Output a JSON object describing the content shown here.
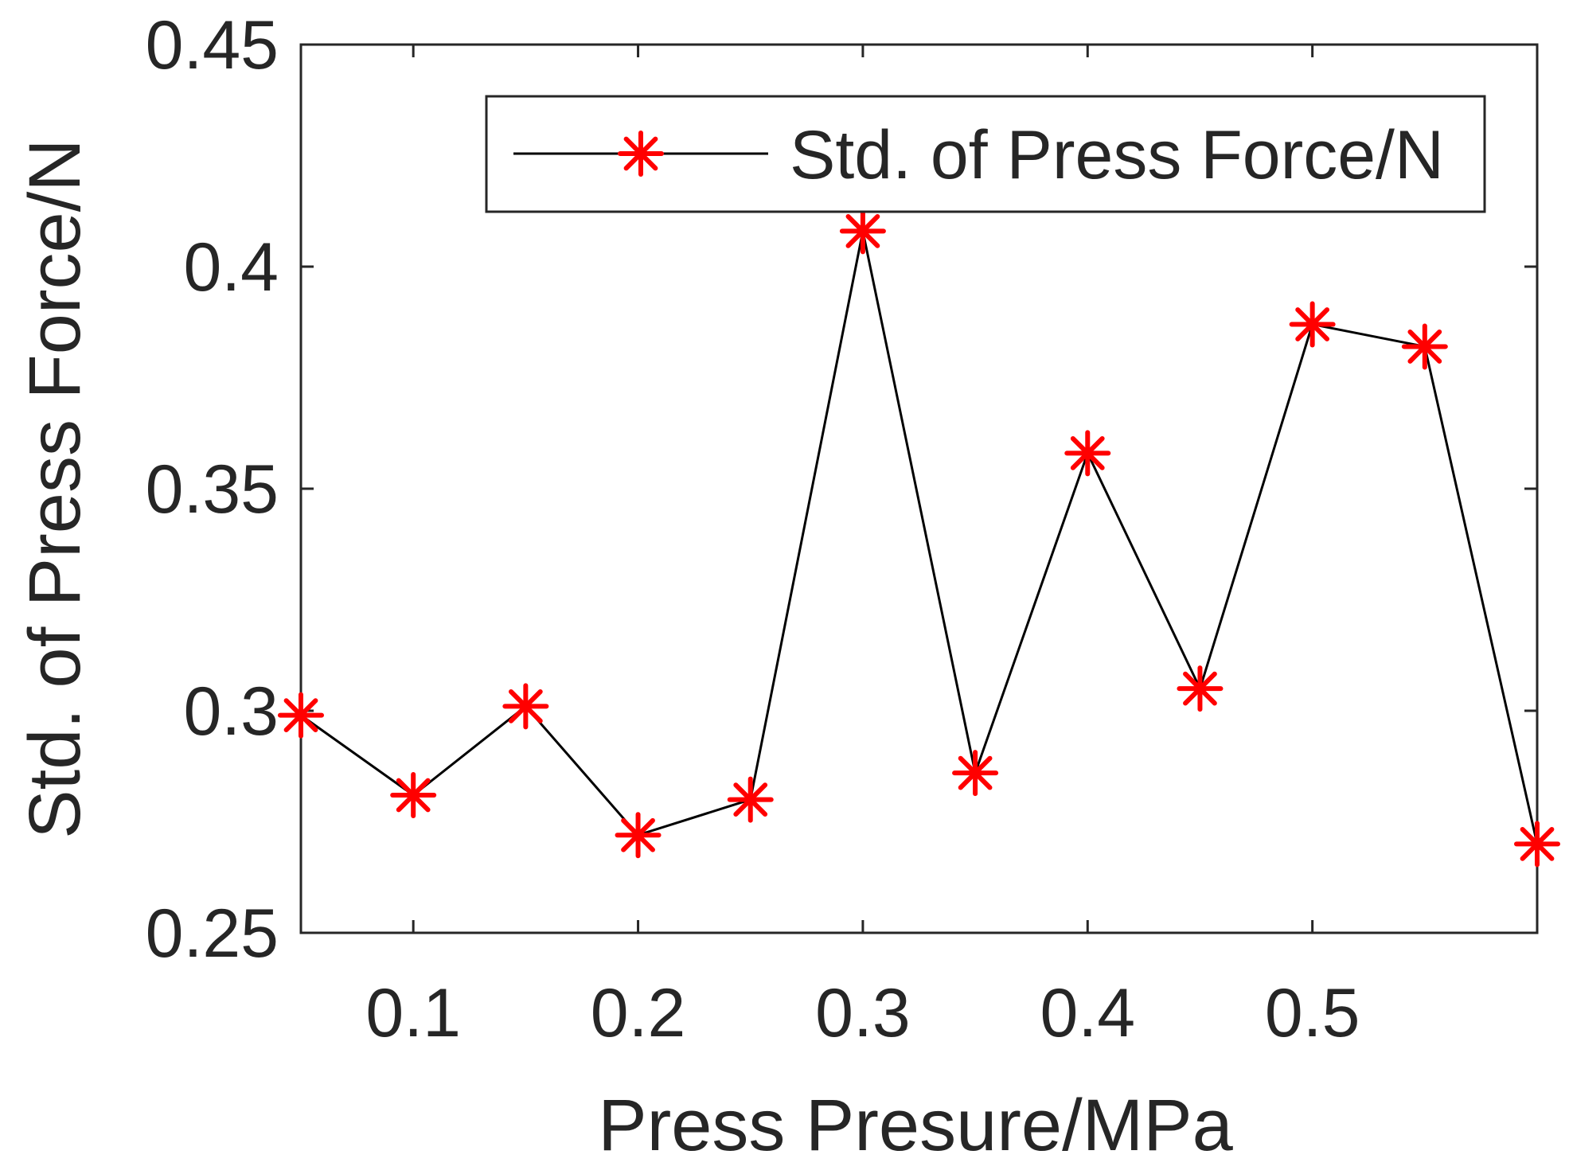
{
  "chart_data": {
    "type": "line",
    "title": "",
    "xlabel": "Press Presure/MPa",
    "ylabel": "Std. of Press Force/N",
    "xlim": [
      0.05,
      0.6
    ],
    "ylim": [
      0.25,
      0.45
    ],
    "xticks": [
      0.1,
      0.2,
      0.3,
      0.4,
      0.5
    ],
    "xtick_labels": [
      "0.1",
      "0.2",
      "0.3",
      "0.4",
      "0.5"
    ],
    "yticks": [
      0.25,
      0.3,
      0.35,
      0.4,
      0.45
    ],
    "ytick_labels": [
      "0.25",
      "0.3",
      "0.35",
      "0.4",
      "0.45"
    ],
    "grid": false,
    "legend_position": "top-right",
    "series": [
      {
        "name": "Std. of Press Force/N",
        "line_color": "#000000",
        "marker": "asterisk",
        "marker_color": "#ff0000",
        "x": [
          0.05,
          0.1,
          0.15,
          0.2,
          0.25,
          0.3,
          0.35,
          0.4,
          0.45,
          0.5,
          0.55,
          0.6
        ],
        "y": [
          0.299,
          0.281,
          0.301,
          0.272,
          0.28,
          0.408,
          0.286,
          0.358,
          0.305,
          0.387,
          0.382,
          0.27
        ]
      }
    ]
  }
}
